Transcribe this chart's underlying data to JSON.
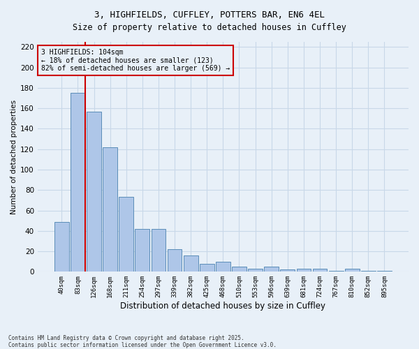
{
  "title_line1": "3, HIGHFIELDS, CUFFLEY, POTTERS BAR, EN6 4EL",
  "title_line2": "Size of property relative to detached houses in Cuffley",
  "xlabel": "Distribution of detached houses by size in Cuffley",
  "ylabel": "Number of detached properties",
  "categories": [
    "40sqm",
    "83sqm",
    "126sqm",
    "168sqm",
    "211sqm",
    "254sqm",
    "297sqm",
    "339sqm",
    "382sqm",
    "425sqm",
    "468sqm",
    "510sqm",
    "553sqm",
    "596sqm",
    "639sqm",
    "681sqm",
    "724sqm",
    "767sqm",
    "810sqm",
    "852sqm",
    "895sqm"
  ],
  "values": [
    49,
    175,
    157,
    122,
    73,
    42,
    42,
    22,
    16,
    8,
    10,
    5,
    3,
    5,
    2,
    3,
    3,
    1,
    3,
    1,
    1
  ],
  "bar_color": "#aec6e8",
  "bar_edge_color": "#5b8db8",
  "marker_line_color": "#cc0000",
  "annotation_box_edge_color": "#cc0000",
  "annotation_text_line1": "3 HIGHFIELDS: 104sqm",
  "annotation_text_line2": "← 18% of detached houses are smaller (123)",
  "annotation_text_line3": "82% of semi-detached houses are larger (569) →",
  "ylim": [
    0,
    225
  ],
  "yticks": [
    0,
    20,
    40,
    60,
    80,
    100,
    120,
    140,
    160,
    180,
    200,
    220
  ],
  "grid_color": "#c8d8e8",
  "bg_color": "#e8f0f8",
  "footnote1": "Contains HM Land Registry data © Crown copyright and database right 2025.",
  "footnote2": "Contains public sector information licensed under the Open Government Licence v3.0."
}
